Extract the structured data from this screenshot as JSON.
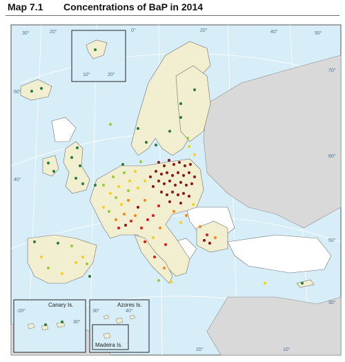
{
  "header": {
    "map_number": "Map 7.1",
    "title": "Concentrations of BaP in 2014"
  },
  "colors": {
    "sea": "#d7eef8",
    "land_reporting": "#f1efcf",
    "land_nonreporting": "#ffffff",
    "land_outside": "#d9d9d9",
    "border": "#6f6f6f",
    "graticule": "#ffffff",
    "dot_dark_green": "#2e7d3e",
    "dot_light_green": "#9ccc3a",
    "dot_yellow": "#f2d21e",
    "dot_orange": "#ef8a1a",
    "dot_red": "#e02020",
    "dot_dark_red": "#8b1a1a"
  },
  "graticule_labels": [
    "30°",
    "20°",
    "10°",
    "0°",
    "10°",
    "20°",
    "30°",
    "40°",
    "50°",
    "60°",
    "70°",
    "60°",
    "50°",
    "40°",
    "30°",
    "10°",
    "20°"
  ],
  "insets": {
    "svalbard": {
      "labels": [
        "10°",
        "20°"
      ]
    },
    "canary": {
      "label": "Canary Is.",
      "grid": [
        "-20°",
        "30°"
      ]
    },
    "azores": {
      "label": "Azores Is.",
      "grid": [
        "30°",
        "40°"
      ]
    },
    "madeira": {
      "label": "Madeira Is."
    }
  }
}
